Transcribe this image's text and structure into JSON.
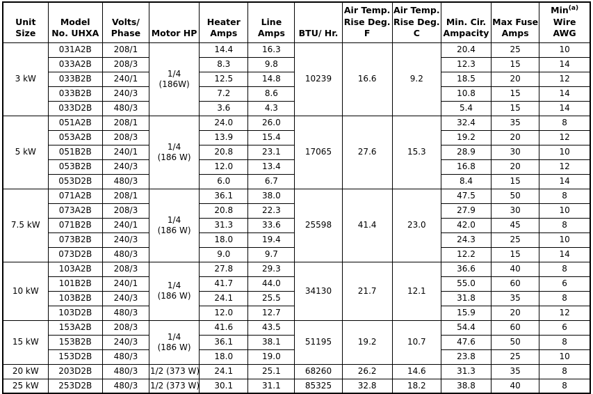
{
  "colors": {
    "background": "#ffffff",
    "text": "#000000",
    "grid_border": "#000000"
  },
  "table": {
    "columns": [
      {
        "id": "unit_size",
        "label": "Unit Size"
      },
      {
        "id": "model",
        "label": "Model\nNo. UHXA"
      },
      {
        "id": "volts_phase",
        "label": "Volts/\nPhase"
      },
      {
        "id": "motor_hp",
        "label": "Motor HP"
      },
      {
        "id": "heater_amps",
        "label": "Heater\nAmps"
      },
      {
        "id": "line_amps",
        "label": "Line\nAmps"
      },
      {
        "id": "btu_hr",
        "label": "BTU/ Hr."
      },
      {
        "id": "rise_f",
        "label": "Air Temp.\nRise Deg.\nF"
      },
      {
        "id": "rise_c",
        "label": "Air Temp.\nRise Deg.\nC"
      },
      {
        "id": "min_cir_ampacity",
        "label": "Min. Cir.\nAmpacity"
      },
      {
        "id": "max_fuse_amps",
        "label": "Max Fuse\nAmps"
      },
      {
        "id": "min_wire_awg",
        "label": "Min\nWire\nAWG",
        "sup": "(a)"
      }
    ],
    "sections": [
      {
        "unit_size": "3 kW",
        "motor_hp": "1/4\n(186W)",
        "btu_hr": "10239",
        "rise_f": "16.6",
        "rise_c": "9.2",
        "rows": [
          {
            "model": "031A2B",
            "volts_phase": "208/1",
            "heater_amps": "14.4",
            "line_amps": "16.3",
            "min_cir_ampacity": "20.4",
            "max_fuse_amps": "25",
            "min_wire_awg": "10"
          },
          {
            "model": "033A2B",
            "volts_phase": "208/3",
            "heater_amps": "8.3",
            "line_amps": "9.8",
            "min_cir_ampacity": "12.3",
            "max_fuse_amps": "15",
            "min_wire_awg": "14"
          },
          {
            "model": "033B2B",
            "volts_phase": "240/1",
            "heater_amps": "12.5",
            "line_amps": "14.8",
            "min_cir_ampacity": "18.5",
            "max_fuse_amps": "20",
            "min_wire_awg": "12"
          },
          {
            "model": "033B2B",
            "volts_phase": "240/3",
            "heater_amps": "7.2",
            "line_amps": "8.6",
            "min_cir_ampacity": "10.8",
            "max_fuse_amps": "15",
            "min_wire_awg": "14"
          },
          {
            "model": "033D2B",
            "volts_phase": "480/3",
            "heater_amps": "3.6",
            "line_amps": "4.3",
            "min_cir_ampacity": "5.4",
            "max_fuse_amps": "15",
            "min_wire_awg": "14"
          }
        ]
      },
      {
        "unit_size": "5 kW",
        "motor_hp": "1/4\n(186 W)",
        "btu_hr": "17065",
        "rise_f": "27.6",
        "rise_c": "15.3",
        "rows": [
          {
            "model": "051A2B",
            "volts_phase": "208/1",
            "heater_amps": "24.0",
            "line_amps": "26.0",
            "min_cir_ampacity": "32.4",
            "max_fuse_amps": "35",
            "min_wire_awg": "8"
          },
          {
            "model": "053A2B",
            "volts_phase": "208/3",
            "heater_amps": "13.9",
            "line_amps": "15.4",
            "min_cir_ampacity": "19.2",
            "max_fuse_amps": "20",
            "min_wire_awg": "12"
          },
          {
            "model": "051B2B",
            "volts_phase": "240/1",
            "heater_amps": "20.8",
            "line_amps": "23.1",
            "min_cir_ampacity": "28.9",
            "max_fuse_amps": "30",
            "min_wire_awg": "10"
          },
          {
            "model": "053B2B",
            "volts_phase": "240/3",
            "heater_amps": "12.0",
            "line_amps": "13.4",
            "min_cir_ampacity": "16.8",
            "max_fuse_amps": "20",
            "min_wire_awg": "12"
          },
          {
            "model": "053D2B",
            "volts_phase": "480/3",
            "heater_amps": "6.0",
            "line_amps": "6.7",
            "min_cir_ampacity": "8.4",
            "max_fuse_amps": "15",
            "min_wire_awg": "14"
          }
        ]
      },
      {
        "unit_size": "7.5 kW",
        "motor_hp": "1/4\n(186 W)",
        "btu_hr": "25598",
        "rise_f": "41.4",
        "rise_c": "23.0",
        "rows": [
          {
            "model": "071A2B",
            "volts_phase": "208/1",
            "heater_amps": "36.1",
            "line_amps": "38.0",
            "min_cir_ampacity": "47.5",
            "max_fuse_amps": "50",
            "min_wire_awg": "8"
          },
          {
            "model": "073A2B",
            "volts_phase": "208/3",
            "heater_amps": "20.8",
            "line_amps": "22.3",
            "min_cir_ampacity": "27.9",
            "max_fuse_amps": "30",
            "min_wire_awg": "10"
          },
          {
            "model": "071B2B",
            "volts_phase": "240/1",
            "heater_amps": "31.3",
            "line_amps": "33.6",
            "min_cir_ampacity": "42.0",
            "max_fuse_amps": "45",
            "min_wire_awg": "8"
          },
          {
            "model": "073B2B",
            "volts_phase": "240/3",
            "heater_amps": "18.0",
            "line_amps": "19.4",
            "min_cir_ampacity": "24.3",
            "max_fuse_amps": "25",
            "min_wire_awg": "10"
          },
          {
            "model": "073D2B",
            "volts_phase": "480/3",
            "heater_amps": "9.0",
            "line_amps": "9.7",
            "min_cir_ampacity": "12.2",
            "max_fuse_amps": "15",
            "min_wire_awg": "14"
          }
        ]
      },
      {
        "unit_size": "10 kW",
        "motor_hp": "1/4\n(186 W)",
        "btu_hr": "34130",
        "rise_f": "21.7",
        "rise_c": "12.1",
        "rows": [
          {
            "model": "103A2B",
            "volts_phase": "208/3",
            "heater_amps": "27.8",
            "line_amps": "29.3",
            "min_cir_ampacity": "36.6",
            "max_fuse_amps": "40",
            "min_wire_awg": "8"
          },
          {
            "model": "101B2B",
            "volts_phase": "240/1",
            "heater_amps": "41.7",
            "line_amps": "44.0",
            "min_cir_ampacity": "55.0",
            "max_fuse_amps": "60",
            "min_wire_awg": "6"
          },
          {
            "model": "103B2B",
            "volts_phase": "240/3",
            "heater_amps": "24.1",
            "line_amps": "25.5",
            "min_cir_ampacity": "31.8",
            "max_fuse_amps": "35",
            "min_wire_awg": "8"
          },
          {
            "model": "103D2B",
            "volts_phase": "480/3",
            "heater_amps": "12.0",
            "line_amps": "12.7",
            "min_cir_ampacity": "15.9",
            "max_fuse_amps": "20",
            "min_wire_awg": "12"
          }
        ]
      },
      {
        "unit_size": "15 kW",
        "motor_hp": "1/4\n(186 W)",
        "btu_hr": "51195",
        "rise_f": "19.2",
        "rise_c": "10.7",
        "rows": [
          {
            "model": "153A2B",
            "volts_phase": "208/3",
            "heater_amps": "41.6",
            "line_amps": "43.5",
            "min_cir_ampacity": "54.4",
            "max_fuse_amps": "60",
            "min_wire_awg": "6"
          },
          {
            "model": "153B2B",
            "volts_phase": "240/3",
            "heater_amps": "36.1",
            "line_amps": "38.1",
            "min_cir_ampacity": "47.6",
            "max_fuse_amps": "50",
            "min_wire_awg": "8"
          },
          {
            "model": "153D2B",
            "volts_phase": "480/3",
            "heater_amps": "18.0",
            "line_amps": "19.0",
            "min_cir_ampacity": "23.8",
            "max_fuse_amps": "25",
            "min_wire_awg": "10"
          }
        ]
      },
      {
        "unit_size": "20 kW",
        "motor_hp": "1/2 (373 W)",
        "btu_hr": "68260",
        "rise_f": "26.2",
        "rise_c": "14.6",
        "rows": [
          {
            "model": "203D2B",
            "volts_phase": "480/3",
            "heater_amps": "24.1",
            "line_amps": "25.1",
            "min_cir_ampacity": "31.3",
            "max_fuse_amps": "35",
            "min_wire_awg": "8"
          }
        ]
      },
      {
        "unit_size": "25 kW",
        "motor_hp": "1/2 (373 W)",
        "btu_hr": "85325",
        "rise_f": "32.8",
        "rise_c": "18.2",
        "rows": [
          {
            "model": "253D2B",
            "volts_phase": "480/3",
            "heater_amps": "30.1",
            "line_amps": "31.1",
            "min_cir_ampacity": "38.8",
            "max_fuse_amps": "40",
            "min_wire_awg": "8"
          }
        ]
      }
    ]
  }
}
